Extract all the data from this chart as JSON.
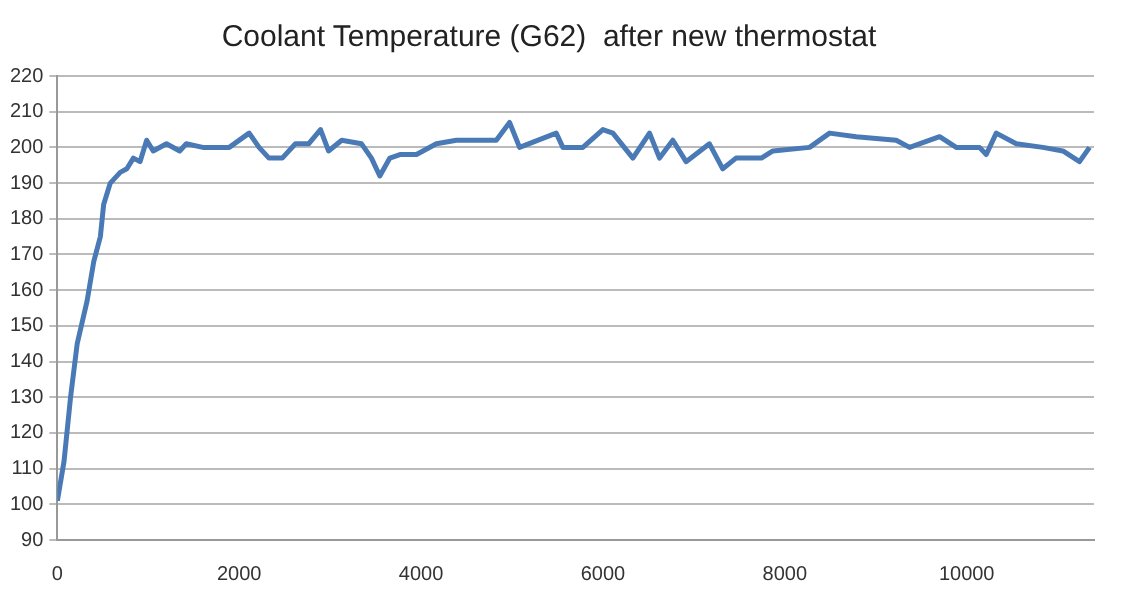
{
  "chart_data": {
    "type": "line",
    "title": "Coolant Temperature (G62)  after new thermostat",
    "xlim": [
      0,
      11400
    ],
    "xticks": [
      0,
      2000,
      4000,
      6000,
      8000,
      10000
    ],
    "ylim": [
      90,
      220
    ],
    "yticks": [
      90,
      100,
      110,
      120,
      130,
      140,
      150,
      160,
      170,
      180,
      190,
      200,
      210,
      220
    ],
    "grid": "y",
    "legend": false,
    "marker": "none",
    "line_style": "solid",
    "series": [
      {
        "color": "#4a7ab5",
        "x": [
          0,
          73,
          145,
          218,
          327,
          400,
          473,
          509,
          582,
          691,
          764,
          836,
          909,
          982,
          1054,
          1200,
          1345,
          1418,
          1600,
          1890,
          2109,
          2218,
          2327,
          2473,
          2618,
          2763,
          2894,
          2982,
          3127,
          3345,
          3454,
          3546,
          3656,
          3767,
          3949,
          4168,
          4388,
          4827,
          4973,
          5083,
          5486,
          5559,
          5779,
          5999,
          6109,
          6329,
          6512,
          6622,
          6768,
          6914,
          7171,
          7317,
          7463,
          7539,
          7742,
          7869,
          8272,
          8492,
          8785,
          9225,
          9372,
          9702,
          9885,
          10141,
          10215,
          10325,
          10545,
          10838,
          11058,
          11241,
          11351
        ],
        "values": [
          101,
          112,
          130,
          145,
          157,
          168,
          175,
          184,
          190,
          193,
          194,
          197,
          196,
          202,
          199,
          201,
          199,
          201,
          200,
          200,
          204,
          200,
          197,
          197,
          201,
          201,
          205,
          199,
          202,
          201,
          197,
          192,
          197,
          198,
          198,
          201,
          202,
          202,
          207,
          200,
          204,
          200,
          200,
          205,
          204,
          197,
          204,
          197,
          202,
          196,
          201,
          194,
          197,
          197,
          197,
          199,
          200,
          204,
          203,
          202,
          200,
          203,
          200,
          200,
          198,
          204,
          201,
          200,
          199,
          196,
          200
        ]
      }
    ]
  }
}
